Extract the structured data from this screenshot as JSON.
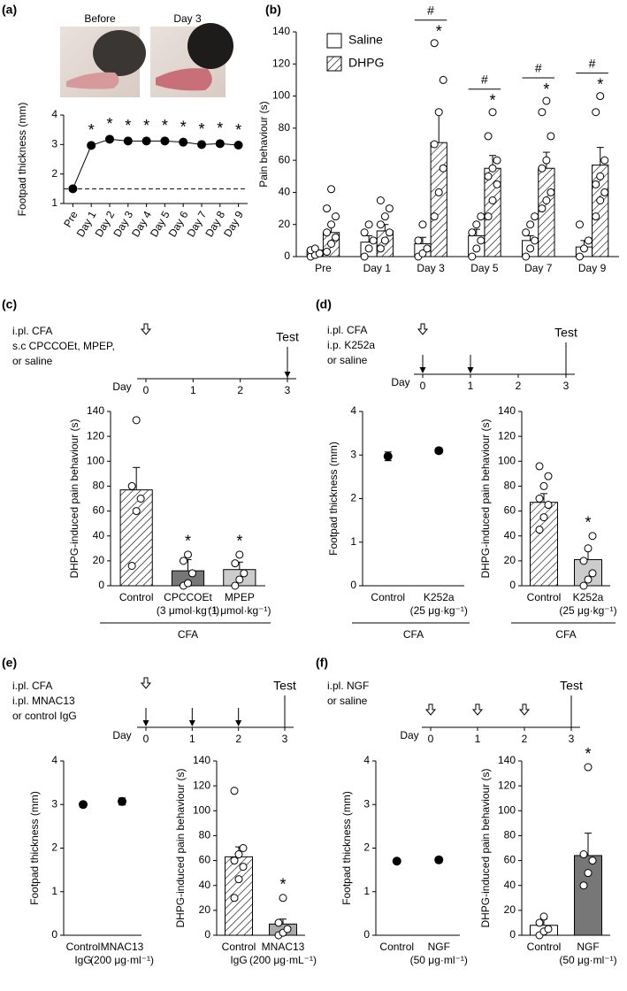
{
  "chart_data": [
    {
      "type": "line",
      "panel": "(a)",
      "image_labels": [
        "Before",
        "Day 3"
      ],
      "ylabel": "Footpad thickness (mm)",
      "categories": [
        "Pre",
        "Day 1",
        "Day 2",
        "Day 3",
        "Day 4",
        "Day 5",
        "Day 6",
        "Day 7",
        "Day 8",
        "Day 9"
      ],
      "values": [
        1.5,
        2.97,
        3.18,
        3.12,
        3.12,
        3.12,
        3.08,
        3.0,
        3.03,
        2.98
      ],
      "annotations": [
        null,
        "*",
        "*",
        "*",
        "*",
        "*",
        "*",
        "*",
        "*",
        "*"
      ],
      "reference_line": 1.5,
      "color": "#000000",
      "ylim": [
        1,
        4
      ],
      "yticks": [
        1,
        2,
        3,
        4
      ]
    },
    {
      "type": "bar",
      "panel": "(b)",
      "ylabel": "Pain behaviour (s)",
      "legend": "upper left",
      "categories": [
        "Pre",
        "Day 1",
        "Day 3",
        "Day 5",
        "Day 7",
        "Day 9"
      ],
      "series": [
        {
          "name": "Saline",
          "color": "#ffffff",
          "pattern": "none",
          "values": [
            4,
            9,
            8,
            13,
            10,
            6
          ],
          "errors": [
            2,
            4,
            4,
            4,
            3,
            4
          ],
          "points": [
            [
              0,
              1,
              2,
              4,
              5
            ],
            [
              0,
              5,
              10,
              15,
              20
            ],
            [
              0,
              2,
              5,
              10,
              20
            ],
            [
              0,
              5,
              10,
              15,
              20,
              25
            ],
            [
              0,
              5,
              10,
              15,
              20,
              25
            ],
            [
              0,
              5,
              10,
              20
            ]
          ]
        },
        {
          "name": "DHPG",
          "color": "#ffffff",
          "pattern": "hatch",
          "values": [
            15,
            16,
            71,
            55,
            55,
            57
          ],
          "errors": [
            4,
            4,
            20,
            8,
            10,
            11
          ],
          "points": [
            [
              3,
              8,
              12,
              15,
              20,
              25,
              30,
              42
            ],
            [
              5,
              10,
              15,
              20,
              25,
              30,
              35
            ],
            [
              25,
              40,
              55,
              70,
              90,
              110,
              133
            ],
            [
              25,
              35,
              45,
              50,
              55,
              60,
              75,
              90
            ],
            [
              30,
              35,
              40,
              55,
              60,
              75,
              90,
              97
            ],
            [
              25,
              35,
              40,
              45,
              50,
              60,
              90,
              100
            ]
          ]
        }
      ],
      "hash_annotations": [
        null,
        null,
        "#",
        "#",
        "#",
        "#"
      ],
      "star_annotations": [
        null,
        null,
        "*",
        "*",
        "*",
        "*"
      ],
      "ylim": [
        0,
        140
      ],
      "yticks": [
        0,
        20,
        40,
        60,
        80,
        100,
        120,
        140
      ]
    },
    {
      "type": "bar",
      "panel": "(c)",
      "ylabel": "DHPG-induced pain behaviour (s)",
      "categories": [
        "Control",
        "CPCCOEt",
        "MPEP"
      ],
      "sublabels": [
        null,
        "(3 μmol·kg⁻¹)",
        "(1 μmol·kg⁻¹)"
      ],
      "group_label": "CFA",
      "values": [
        77,
        12,
        13
      ],
      "errors": [
        18,
        9,
        6
      ],
      "colors": [
        "#ffffff",
        "#777777",
        "#cccccc"
      ],
      "patterns": [
        "hatch",
        "none",
        "none"
      ],
      "points": [
        [
          16,
          60,
          70,
          80,
          133
        ],
        [
          0,
          2,
          10,
          20,
          25
        ],
        [
          0,
          5,
          10,
          18,
          25
        ]
      ],
      "stars": [
        null,
        "*",
        "*"
      ],
      "ylim": [
        0,
        140
      ],
      "yticks": [
        0,
        20,
        40,
        60,
        80,
        100,
        120,
        140
      ]
    },
    {
      "type": "dot",
      "panel": "(d)",
      "ylabel": "Footpad thickness (mm)",
      "categories": [
        "Control",
        "K252a"
      ],
      "sublabels": [
        null,
        "(25 μg·kg⁻¹)"
      ],
      "group_label": "CFA",
      "values": [
        2.97,
        3.1
      ],
      "errors": [
        0.1,
        0.06
      ],
      "color": "#000000",
      "ylim": [
        0,
        4
      ],
      "yticks": [
        0,
        1,
        2,
        3,
        4
      ]
    },
    {
      "type": "bar",
      "ylabel": "DHPG-induced pain behaviour (s)",
      "categories": [
        "Control",
        "K252a"
      ],
      "sublabels": [
        null,
        "(25 μg·kg⁻¹)"
      ],
      "group_label": "CFA",
      "values": [
        67,
        21
      ],
      "errors": [
        7,
        9
      ],
      "colors": [
        "#ffffff",
        "#cccccc"
      ],
      "patterns": [
        "hatch",
        "none"
      ],
      "points": [
        [
          45,
          55,
          65,
          70,
          80,
          88,
          96
        ],
        [
          0,
          5,
          10,
          20,
          30,
          40
        ]
      ],
      "stars": [
        null,
        "*"
      ],
      "ylim": [
        0,
        140
      ],
      "yticks": [
        0,
        20,
        40,
        60,
        80,
        100,
        120,
        140
      ]
    },
    {
      "type": "dot",
      "panel": "(e)",
      "ylabel": "Footpad thickness (mm)",
      "categories": [
        "Control",
        "MNAC13"
      ],
      "sublabels": [
        "IgG",
        "(200 μg·ml⁻¹)"
      ],
      "values": [
        3.0,
        3.07
      ],
      "errors": [
        0.06,
        0.08
      ],
      "color": "#000000",
      "ylim": [
        0,
        4
      ],
      "yticks": [
        0,
        1,
        2,
        3,
        4
      ]
    },
    {
      "type": "bar",
      "ylabel": "DHPG-induced pain behaviour (s)",
      "categories": [
        "Control",
        "MNAC13"
      ],
      "sublabels": [
        "IgG",
        "(200 μg·mL⁻¹)"
      ],
      "values": [
        63,
        9
      ],
      "errors": [
        8,
        4
      ],
      "colors": [
        "#ffffff",
        "#aaaaaa"
      ],
      "patterns": [
        "hatch",
        "none"
      ],
      "points": [
        [
          30,
          45,
          55,
          60,
          65,
          70,
          116
        ],
        [
          0,
          2,
          5,
          10,
          30
        ]
      ],
      "stars": [
        null,
        "*"
      ],
      "ylim": [
        0,
        140
      ],
      "yticks": [
        0,
        20,
        40,
        60,
        80,
        100,
        120,
        140
      ]
    },
    {
      "type": "dot",
      "panel": "(f)",
      "ylabel": "Footpad thickness (mm)",
      "categories": [
        "Control",
        "NGF"
      ],
      "sublabels": [
        null,
        "(50 μg·ml⁻¹)"
      ],
      "values": [
        1.7,
        1.73
      ],
      "errors": [
        0.05,
        0.06
      ],
      "color": "#000000",
      "ylim": [
        0,
        4
      ],
      "yticks": [
        0,
        1,
        2,
        3,
        4
      ]
    },
    {
      "type": "bar",
      "ylabel": "DHPG-induced pain behaviour (s)",
      "categories": [
        "Control",
        "NGF"
      ],
      "sublabels": [
        null,
        "(50 μg·ml⁻¹)"
      ],
      "values": [
        8,
        64
      ],
      "errors": [
        5,
        18
      ],
      "colors": [
        "#ffffff",
        "#777777"
      ],
      "patterns": [
        "none",
        "none"
      ],
      "points": [
        [
          0,
          3,
          5,
          10,
          15
        ],
        [
          40,
          50,
          60,
          65,
          135
        ]
      ],
      "stars": [
        null,
        "*"
      ],
      "ylim": [
        0,
        140
      ],
      "yticks": [
        0,
        20,
        40,
        60,
        80,
        100,
        120,
        140
      ]
    }
  ],
  "timelines": [
    {
      "lines": [
        "i.pl. CFA",
        "s.c CPCCOEt, MPEP,",
        "or saline"
      ],
      "test": "Test",
      "day_label": "Day",
      "days": [
        0,
        1,
        2,
        3
      ],
      "open_arrows": [
        0
      ],
      "solid_arrows": [
        3
      ]
    },
    {
      "lines": [
        "i.pl. CFA",
        "i.p. K252a",
        "or saline"
      ],
      "test": "Test",
      "day_label": "Day",
      "days": [
        0,
        1,
        2,
        3
      ],
      "open_arrows": [
        0
      ],
      "solid_arrows": [
        0,
        1
      ]
    },
    {
      "lines": [
        "i.pl. CFA",
        "i.pl. MNAC13",
        "or control IgG"
      ],
      "test": "Test",
      "day_label": "Day",
      "days": [
        0,
        1,
        2,
        3
      ],
      "open_arrows": [
        0
      ],
      "solid_arrows": [
        0,
        1,
        2
      ]
    },
    {
      "lines": [
        "i.pl. NGF",
        "or saline"
      ],
      "test": "Test",
      "day_label": "Day",
      "days": [
        0,
        1,
        2,
        3
      ],
      "open_arrows": [
        0,
        1,
        2
      ],
      "solid_arrows": []
    }
  ]
}
